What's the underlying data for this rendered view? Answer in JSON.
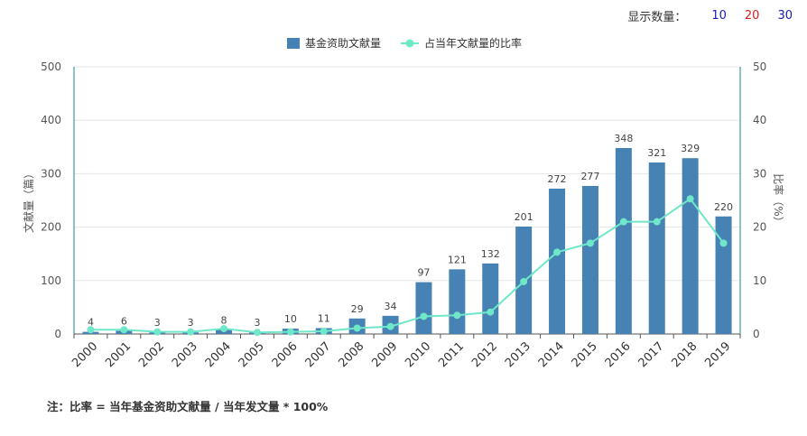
{
  "controls": {
    "display_count_label": "显示数量：",
    "options": [
      {
        "label": "10",
        "color": "#1a1ab8"
      },
      {
        "label": "20",
        "color": "#d62020"
      },
      {
        "label": "30",
        "color": "#1a1ab8"
      }
    ]
  },
  "note": "注：比率 = 当年基金资助文献量 / 当年发文量 * 100%",
  "colors": {
    "bar": "#4682b4",
    "line": "#6ee8c8",
    "right_axis": "#1a8a8a",
    "grid": "#e6e6e6"
  },
  "chart_data": {
    "type": "bar",
    "categories": [
      "2000",
      "2001",
      "2002",
      "2003",
      "2004",
      "2005",
      "2006",
      "2007",
      "2008",
      "2009",
      "2010",
      "2011",
      "2012",
      "2013",
      "2014",
      "2015",
      "2016",
      "2017",
      "2018",
      "2019"
    ],
    "series": [
      {
        "name": "基金资助文献量",
        "type": "bar",
        "axis": "left",
        "values": [
          4,
          6,
          3,
          3,
          8,
          3,
          10,
          11,
          29,
          34,
          97,
          121,
          132,
          201,
          272,
          277,
          348,
          321,
          329,
          220
        ]
      },
      {
        "name": "占当年文献量的比率",
        "type": "line",
        "axis": "right",
        "values": [
          0.8,
          0.8,
          0.4,
          0.4,
          1.0,
          0.3,
          0.4,
          0.5,
          1.1,
          1.4,
          3.3,
          3.5,
          4.1,
          9.8,
          15.3,
          17.0,
          21.0,
          21.0,
          25.3,
          17.0
        ]
      }
    ],
    "ylabel": "文献量（篇）",
    "ylim": [
      0,
      500
    ],
    "yticks": [
      0,
      100,
      200,
      300,
      400,
      500
    ],
    "y2label": "比率（%）",
    "y2lim": [
      0,
      50
    ],
    "y2ticks": [
      0,
      10,
      20,
      30,
      40,
      50
    ],
    "grid": true,
    "legend": "top-center",
    "data_labels": true
  }
}
